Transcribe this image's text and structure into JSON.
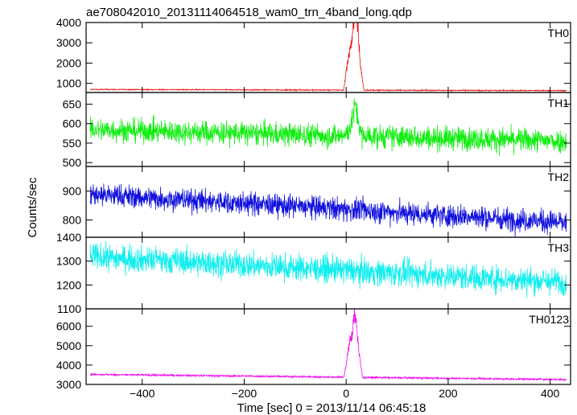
{
  "chart_data": {
    "type": "line",
    "title": "ae708042010_20131114064518_wam0_trn_4band_long.qdp",
    "xlabel": "Time [sec] 0 = 2013/11/14 06:45:18",
    "ylabel": "Counts/sec",
    "xlim": [
      -510,
      440
    ],
    "x_ticks": [
      -400,
      -200,
      0,
      200,
      400
    ],
    "x_tick_labels": [
      "−400",
      "−200",
      "0",
      "200",
      "400"
    ],
    "panels": [
      {
        "name": "TH0",
        "color": "#ee1111",
        "ylim": [
          550,
          4000
        ],
        "y_ticks": [
          1000,
          2000,
          3000,
          4000
        ],
        "baseline_start": 700,
        "baseline_end": 640,
        "noise": 25,
        "burst": [
          [
            -5,
            0
          ],
          [
            0,
            900
          ],
          [
            5,
            1700
          ],
          [
            10,
            2300
          ],
          [
            15,
            3300
          ],
          [
            18,
            4000
          ],
          [
            22,
            3400
          ],
          [
            28,
            1200
          ],
          [
            35,
            0
          ]
        ]
      },
      {
        "name": "TH1",
        "color": "#11ee11",
        "ylim": [
          490,
          680
        ],
        "y_ticks": [
          500,
          550,
          600,
          650
        ],
        "baseline_start": 585,
        "baseline_end": 555,
        "noise": 30,
        "burst": [
          [
            0,
            0
          ],
          [
            10,
            30
          ],
          [
            18,
            80
          ],
          [
            24,
            40
          ],
          [
            30,
            0
          ]
        ]
      },
      {
        "name": "TH2",
        "color": "#1111dd",
        "ylim": [
          740,
          985
        ],
        "y_ticks": [
          800,
          900
        ],
        "baseline_start": 890,
        "baseline_end": 790,
        "noise": 40,
        "burst": []
      },
      {
        "name": "TH3",
        "color": "#11eeee",
        "ylim": [
          1100,
          1400
        ],
        "y_ticks": [
          1100,
          1200,
          1300,
          1400
        ],
        "baseline_start": 1320,
        "baseline_end": 1210,
        "noise": 55,
        "burst": []
      },
      {
        "name": "TH0123",
        "color": "#ee11ee",
        "ylim": [
          3000,
          6900
        ],
        "y_ticks": [
          3000,
          4000,
          5000,
          6000
        ],
        "baseline_start": 3520,
        "baseline_end": 3250,
        "noise": 50,
        "burst": [
          [
            -5,
            0
          ],
          [
            0,
            600
          ],
          [
            6,
            1800
          ],
          [
            12,
            2200
          ],
          [
            16,
            3300
          ],
          [
            20,
            2900
          ],
          [
            25,
            1300
          ],
          [
            32,
            0
          ]
        ]
      }
    ]
  }
}
